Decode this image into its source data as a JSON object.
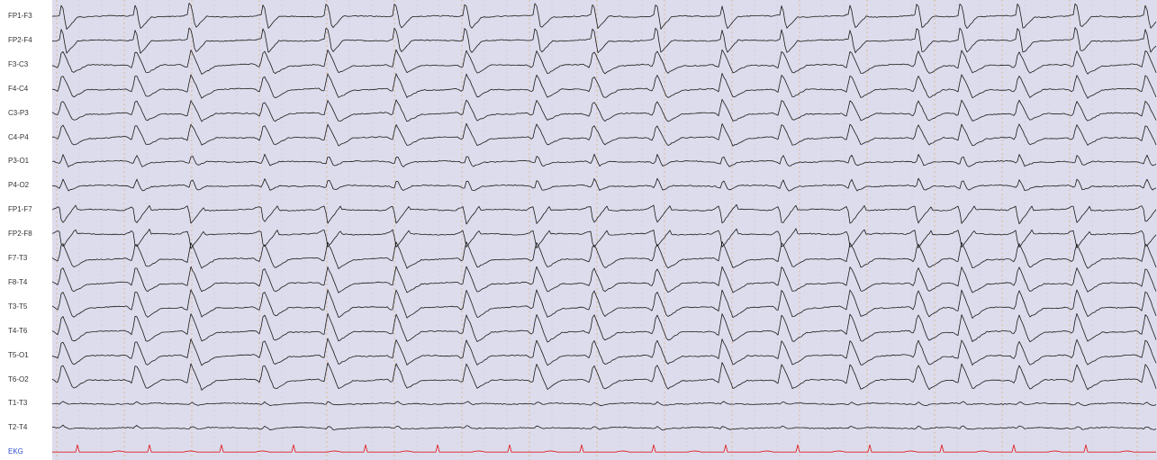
{
  "montage": {
    "channels": [
      {
        "label": "FP1-F3",
        "kind": "eeg",
        "amp": 1.0,
        "shape": "a"
      },
      {
        "label": "FP2-F4",
        "kind": "eeg",
        "amp": 1.0,
        "shape": "a"
      },
      {
        "label": "F3-C3",
        "kind": "eeg",
        "amp": 1.1,
        "shape": "b"
      },
      {
        "label": "F4-C4",
        "kind": "eeg",
        "amp": 1.1,
        "shape": "b"
      },
      {
        "label": "C3-P3",
        "kind": "eeg",
        "amp": 1.0,
        "shape": "b"
      },
      {
        "label": "C4-P4",
        "kind": "eeg",
        "amp": 1.0,
        "shape": "b"
      },
      {
        "label": "P3-O1",
        "kind": "eeg",
        "amp": 0.9,
        "shape": "c"
      },
      {
        "label": "P4-O2",
        "kind": "eeg",
        "amp": 0.9,
        "shape": "c"
      },
      {
        "label": "FP1-F7",
        "kind": "eeg",
        "amp": 1.1,
        "shape": "d"
      },
      {
        "label": "FP2-F8",
        "kind": "eeg",
        "amp": 1.1,
        "shape": "d"
      },
      {
        "label": "F7-T3",
        "kind": "eeg",
        "amp": 1.2,
        "shape": "b"
      },
      {
        "label": "F8-T4",
        "kind": "eeg",
        "amp": 1.2,
        "shape": "b"
      },
      {
        "label": "T3-T5",
        "kind": "eeg",
        "amp": 1.3,
        "shape": "b"
      },
      {
        "label": "T4-T6",
        "kind": "eeg",
        "amp": 1.3,
        "shape": "b"
      },
      {
        "label": "T5-O1",
        "kind": "eeg",
        "amp": 1.2,
        "shape": "b"
      },
      {
        "label": "T6-O2",
        "kind": "eeg",
        "amp": 1.2,
        "shape": "b"
      },
      {
        "label": "T1-T3",
        "kind": "eeg",
        "amp": 0.25,
        "shape": "c"
      },
      {
        "label": "T2-T4",
        "kind": "eeg",
        "amp": 0.25,
        "shape": "c"
      },
      {
        "label": "EKG",
        "kind": "ekg",
        "amp": 1.0,
        "shape": "e"
      }
    ],
    "discharges": [
      0.9,
      9.3,
      15.6,
      23.9,
      31.2,
      39.0,
      47.0,
      55.0,
      61.5,
      68.7,
      76.2,
      83.0,
      90.8,
      98.5,
      103.5,
      110.0,
      116.6,
      124.5
    ]
  },
  "colors": {
    "trace_background": "#dcdcec",
    "eeg_trace": "#1a1a1a",
    "ekg_trace": "#e02020",
    "ekg_label": "#3050d0",
    "eeg_label": "#333333",
    "second_marker": "#e0b080",
    "sub_second_marker": "#c8c8dc"
  }
}
